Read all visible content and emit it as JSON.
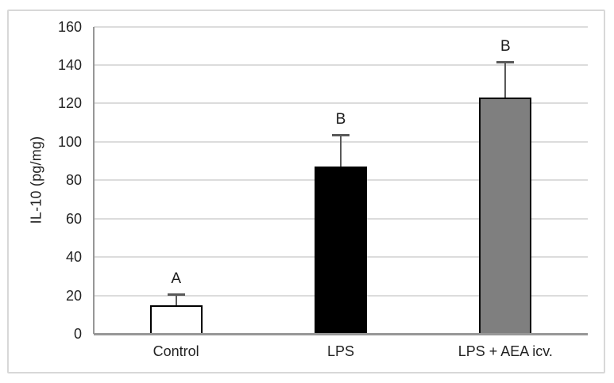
{
  "chart_data": {
    "type": "bar",
    "title": "",
    "xlabel": "",
    "ylabel": "IL-10 (pg/mg)",
    "ylim": [
      0,
      160
    ],
    "yticks": [
      0,
      20,
      40,
      60,
      80,
      100,
      120,
      140,
      160
    ],
    "grid": true,
    "legend": "none",
    "categories": [
      "Control",
      "LPS",
      "LPS + AEA icv."
    ],
    "values": [
      15,
      87,
      123
    ],
    "errors_plus": [
      5.5,
      16.5,
      18.5
    ],
    "significance_labels": [
      "A",
      "B",
      "B"
    ],
    "bar_fill_colors": [
      "#ffffff",
      "#000000",
      "#7f7f7f"
    ],
    "bar_border_color": "#000000",
    "error_bar_color": "#595959",
    "gridline_color": "#dcdcdc",
    "axis_line_color": "#979797",
    "frame_border_color": "#d8d8d8",
    "text_color": "#222222"
  }
}
